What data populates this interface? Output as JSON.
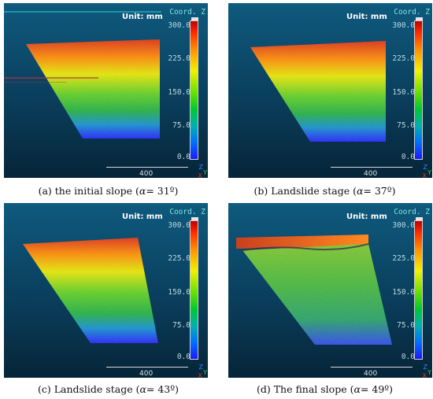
{
  "panels": [
    {
      "unit_label": "Unit: mm",
      "coord_label": "Coord. Z",
      "ticks": [
        "300.0",
        "225.0",
        "150.0",
        "75.0",
        "0.0"
      ],
      "scale_label": "400",
      "axes": {
        "z": "Z",
        "y": "Y",
        "x": "X"
      },
      "caption_prefix": "(a) the initial slope  (",
      "caption_var": "α",
      "caption_suffix": "= 31º)"
    },
    {
      "unit_label": "Unit: mm",
      "coord_label": "Coord. Z",
      "ticks": [
        "300.0",
        "225.0",
        "150.0",
        "75.0",
        "0.0"
      ],
      "scale_label": "400",
      "axes": {
        "z": "Z",
        "y": "Y",
        "x": "X"
      },
      "caption_prefix": "(b) Landslide stage (",
      "caption_var": "α",
      "caption_suffix": "= 37º)"
    },
    {
      "unit_label": "Unit: mm",
      "coord_label": "Coord. Z",
      "ticks": [
        "300.0",
        "225.0",
        "150.0",
        "75.0",
        "0.0"
      ],
      "scale_label": "400",
      "axes": {
        "z": "Z",
        "y": "Y",
        "x": "X"
      },
      "caption_prefix": "(c) Landslide stage (",
      "caption_var": "α",
      "caption_suffix": "= 43º)"
    },
    {
      "unit_label": "Unit: mm",
      "coord_label": "Coord. Z",
      "ticks": [
        "300.0",
        "225.0",
        "150.0",
        "75.0",
        "0.0"
      ],
      "scale_label": "400",
      "axes": {
        "z": "Z",
        "y": "Y",
        "x": "X"
      },
      "caption_prefix": "(d) The final slope (",
      "caption_var": "α",
      "caption_suffix": "= 49º)"
    }
  ],
  "colors": {
    "background_top": "#0f5a7e",
    "background_bottom": "#062538",
    "colormap_high": "#d00000",
    "colormap_mid": "#f2f200",
    "colormap_low": "#1a1aff"
  }
}
